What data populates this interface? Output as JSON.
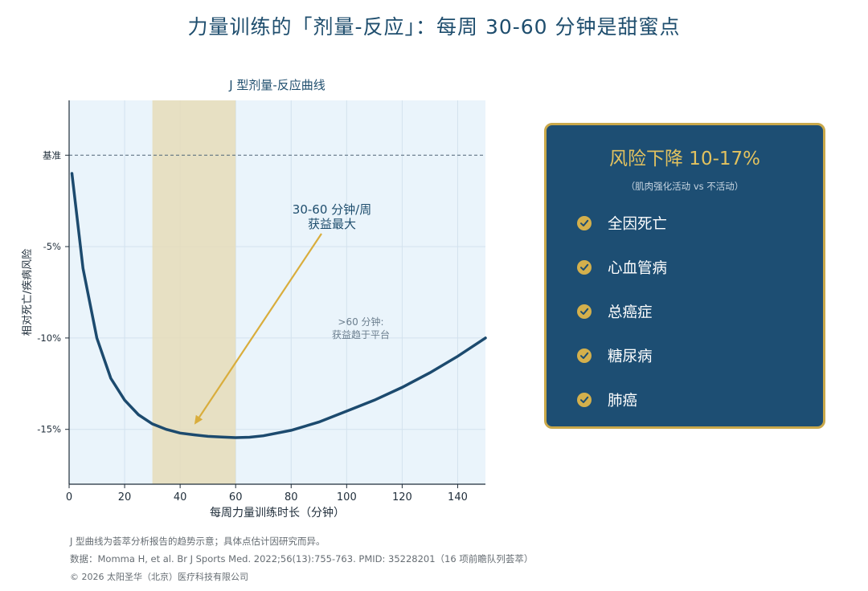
{
  "title": "力量训练的「剂量-反应」：每周 30-60 分钟是甜蜜点",
  "chart_data": {
    "type": "line",
    "title": "J 型剂量-反应曲线",
    "xlabel": "每周力量训练时长（分钟）",
    "ylabel": "相对死亡/疾病风险",
    "xlim": [
      0,
      150
    ],
    "ylim": [
      -18,
      3
    ],
    "x_ticks": [
      0,
      20,
      40,
      60,
      80,
      100,
      120,
      140
    ],
    "y_ticks": [
      {
        "value": 0,
        "label": "基准"
      },
      {
        "value": -5,
        "label": "-5%"
      },
      {
        "value": -10,
        "label": "-10%"
      },
      {
        "value": -15,
        "label": "-15%"
      }
    ],
    "baseline": {
      "value": 0,
      "style": "dashed"
    },
    "highlight_band": {
      "x": [
        30,
        60
      ]
    },
    "grid": true,
    "series": [
      {
        "color": "#1c4a6e",
        "x": [
          1,
          5,
          10,
          15,
          20,
          25,
          30,
          35,
          40,
          45,
          50,
          55,
          60,
          65,
          70,
          80,
          90,
          100,
          110,
          120,
          130,
          140,
          150
        ],
        "y": [
          -1.0,
          -6.2,
          -10.0,
          -12.2,
          -13.4,
          -14.2,
          -14.7,
          -15.0,
          -15.2,
          -15.3,
          -15.38,
          -15.42,
          -15.45,
          -15.43,
          -15.35,
          -15.05,
          -14.6,
          -14.0,
          -13.4,
          -12.7,
          -11.9,
          -11.0,
          -10.0
        ]
      }
    ],
    "annotations": [
      {
        "text": "30-60 分钟/周\n获益最大",
        "arrow_to": [
          46,
          -15.0
        ],
        "color": "#1f4e6e"
      },
      {
        "text": ">60 分钟:\n获益趋于平台",
        "color": "#6c7f8f"
      }
    ]
  },
  "panel": {
    "title": "风险下降 10-17%",
    "subtitle": "（肌肉强化活动 vs 不活动）",
    "items": [
      "全因死亡",
      "心血管病",
      "总癌症",
      "糖尿病",
      "肺癌"
    ]
  },
  "footnotes": [
    "J 型曲线为荟萃分析报告的趋势示意；具体点估计因研究而异。",
    "数据：Momma H, et al. Br J Sports Med. 2022;56(13):755-763. PMID: 35228201（16 项前瞻队列荟萃）",
    "© 2026 太阳圣华（北京）医疗科技有限公司"
  ],
  "colors": {
    "plot_bg": "#eaf4fb",
    "band": "#e6dcb9",
    "curve": "#1c4a6e",
    "arrow": "#d9ad3c",
    "panel_bg": "#1d4e73",
    "panel_border": "#c9a84a",
    "panel_title": "#e2c25f"
  }
}
